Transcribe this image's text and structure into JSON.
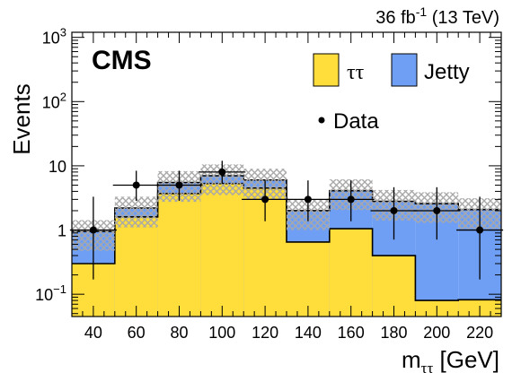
{
  "chart_data": {
    "type": "bar",
    "stacked": true,
    "log_y": true,
    "x_unit": "GeV",
    "x_bin_edges": [
      30,
      50,
      70,
      90,
      110,
      130,
      150,
      170,
      190,
      210,
      230
    ],
    "xlim": [
      30,
      230
    ],
    "ylim": [
      0.045,
      1200
    ],
    "x_ticks": [
      40,
      60,
      80,
      100,
      120,
      140,
      160,
      180,
      200,
      220
    ],
    "y_ticks": [
      {
        "value": 0.1,
        "base": "10",
        "exp": "−1"
      },
      {
        "value": 1,
        "base": "1",
        "exp": ""
      },
      {
        "value": 10,
        "base": "10",
        "exp": ""
      },
      {
        "value": 100,
        "base": "10",
        "exp": "2"
      },
      {
        "value": 1000,
        "base": "10",
        "exp": "3"
      }
    ],
    "series": [
      {
        "name": "ττ",
        "color": "#ffdd3b",
        "values": [
          0.3,
          1.6,
          3.7,
          5.3,
          4.5,
          0.65,
          1.05,
          0.4,
          0.08,
          0.082
        ]
      },
      {
        "name": "Jetty",
        "color": "#6f9ff5",
        "values": [
          0.65,
          0.6,
          1.8,
          1.7,
          1.5,
          1.35,
          3.05,
          2.4,
          2.5,
          2.0
        ]
      }
    ],
    "uncertainty": {
      "relative": 0.5,
      "color": "#a8a8a8"
    },
    "data_points": {
      "name": "Data",
      "x": [
        40,
        60,
        80,
        100,
        120,
        140,
        160,
        180,
        200,
        220
      ],
      "y": [
        1,
        5,
        5,
        8,
        3,
        3,
        3,
        2,
        2,
        1
      ],
      "err_low": [
        0.83,
        2.16,
        2.16,
        2.77,
        1.63,
        1.63,
        1.63,
        1.29,
        1.29,
        0.83
      ],
      "err_high": [
        2.3,
        3.38,
        3.38,
        3.98,
        2.92,
        2.92,
        2.92,
        2.64,
        2.64,
        2.3
      ]
    },
    "xlabel": {
      "main": "m",
      "sub": "ττ",
      "unit": " [GeV]"
    },
    "ylabel": "Events",
    "lumi_text": {
      "pre": "36 fb",
      "exp": "-1",
      "post": " (13 TeV)"
    },
    "experiment": "CMS",
    "legend": {
      "placement": "top-right",
      "entries": [
        {
          "label": "ττ",
          "kind": "fill",
          "color": "#ffdd3b"
        },
        {
          "label": "Jetty",
          "kind": "fill",
          "color": "#6f9ff5"
        },
        {
          "label": "Data",
          "kind": "marker"
        }
      ]
    }
  }
}
